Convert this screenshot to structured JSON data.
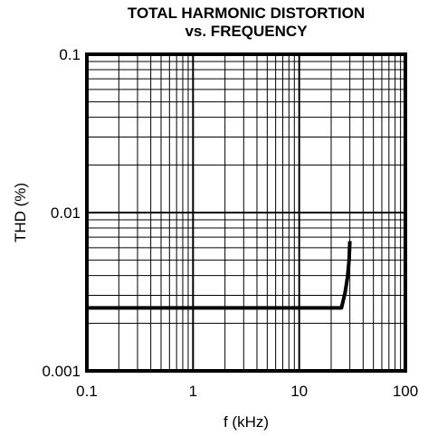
{
  "chart_data": {
    "type": "line",
    "title": "TOTAL HARMONIC DISTORTION",
    "subtitle": "vs. FREQUENCY",
    "xlabel": "f (kHz)",
    "ylabel": "THD (%)",
    "x_scale": "log",
    "y_scale": "log",
    "xlim": [
      0.1,
      100
    ],
    "ylim": [
      0.001,
      0.1
    ],
    "x_ticks": [
      {
        "value": 0.1,
        "label": "0.1"
      },
      {
        "value": 1,
        "label": "1"
      },
      {
        "value": 10,
        "label": "10"
      },
      {
        "value": 100,
        "label": "100"
      }
    ],
    "y_ticks": [
      {
        "value": 0.001,
        "label": "0.001"
      },
      {
        "value": 0.01,
        "label": "0.01"
      },
      {
        "value": 0.1,
        "label": "0.1"
      }
    ],
    "grid": true,
    "series": [
      {
        "color": "#000000",
        "x": [
          0.1,
          1,
          10,
          25,
          27,
          28.5,
          29.5,
          30
        ],
        "y": [
          0.0025,
          0.0025,
          0.0025,
          0.0025,
          0.0031,
          0.0039,
          0.005,
          0.0066
        ]
      }
    ]
  }
}
